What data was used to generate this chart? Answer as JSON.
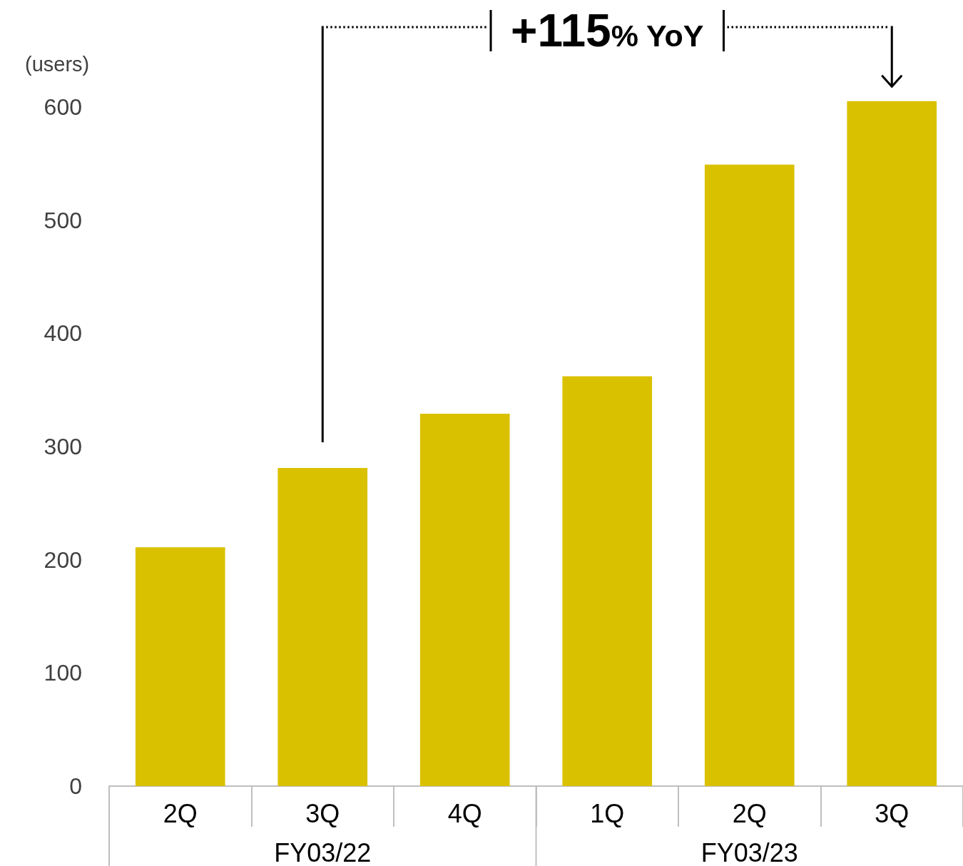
{
  "chart_data": {
    "type": "bar",
    "categories": [
      "2Q",
      "3Q",
      "4Q",
      "1Q",
      "2Q",
      "3Q"
    ],
    "values": [
      211,
      281,
      329,
      362,
      549,
      605
    ],
    "color": "#dac100",
    "ylabel": "(users)",
    "ylim": [
      0,
      605
    ],
    "yticks": [
      0,
      100,
      200,
      300,
      400,
      500,
      600
    ],
    "annotations": [
      "+115% YoY",
      "FY03/22",
      "FY03/23"
    ]
  }
}
